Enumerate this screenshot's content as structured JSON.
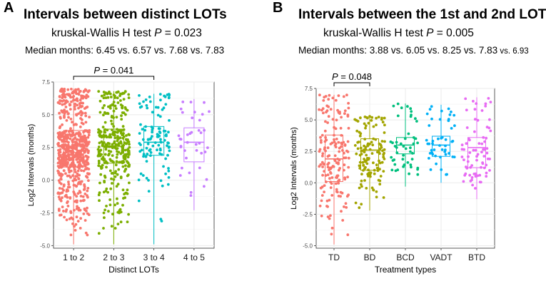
{
  "panelA": {
    "letter": "A",
    "title": "Intervals between distinct LOTs",
    "test_prefix": "kruskal-Wallis H test ",
    "p_symbol": "P",
    "test_value": " = 0.023",
    "median_text": "Median months: 6.45 vs. 6.57 vs. 7.68 vs. 7.83",
    "sig_text": " = 0.041"
  },
  "panelB": {
    "letter": "B",
    "title": "Intervals between the 1st and 2nd LOT",
    "test_prefix": "kruskal-Wallis H test ",
    "p_symbol": "P",
    "test_value": " = 0.005",
    "median_text_main": "Median months: 3.88 vs. 6.05 vs. 8.25 vs. 7.83",
    "median_text_small": " vs. 6.93",
    "sig_text": " = 0.048"
  },
  "chart_data": [
    {
      "type": "box",
      "panel": "A",
      "title": "Intervals between distinct LOTs",
      "subtitle": "kruskal-Wallis H test P = 0.023",
      "xlabel": "Distinct LOTs",
      "ylabel": "Log2 Intervals (months)",
      "ylim": [
        -5.2,
        7.5
      ],
      "yticks": [
        -5.0,
        -2.5,
        0.0,
        2.5,
        5.0,
        7.5
      ],
      "ytick_labels": [
        "-5.0",
        "-2.5",
        "0.0",
        "2.5",
        "5.0",
        "7.5"
      ],
      "grid": true,
      "categories": [
        "1 to 2",
        "2 to 3",
        "3 to 4",
        "4 to 5"
      ],
      "colors": [
        "#F8766D",
        "#7CAE00",
        "#00BFC4",
        "#C77CFF"
      ],
      "point_counts": [
        650,
        330,
        110,
        38
      ],
      "boxes": [
        {
          "q1": 1.0,
          "median": 2.6,
          "q3": 3.8,
          "low": -4.9,
          "high": 7.0
        },
        {
          "q1": 1.3,
          "median": 2.6,
          "q3": 3.9,
          "low": -4.9,
          "high": 6.8
        },
        {
          "q1": 1.9,
          "median": 2.9,
          "q3": 4.1,
          "low": -4.9,
          "high": 6.6
        },
        {
          "q1": 1.4,
          "median": 2.9,
          "q3": 4.0,
          "low": -2.3,
          "high": 6.2
        }
      ],
      "comparison": {
        "groups": [
          "1 to 2",
          "3 to 4"
        ],
        "label": "P = 0.041"
      }
    },
    {
      "type": "box",
      "panel": "B",
      "title": "Intervals between the 1st and 2nd LOT",
      "subtitle": "kruskal-Wallis H test P = 0.005",
      "xlabel": "Treatment types",
      "ylabel": "Log2 Intervals (months)",
      "ylim": [
        -5.2,
        7.5
      ],
      "yticks": [
        -5.0,
        -2.5,
        0.0,
        2.5,
        5.0,
        7.5
      ],
      "ytick_labels": [
        "-5.0",
        "-2.5",
        "0.0",
        "2.5",
        "5.0",
        "7.5"
      ],
      "grid": true,
      "categories": [
        "TD",
        "BD",
        "BCD",
        "VADT",
        "BTD"
      ],
      "colors": [
        "#F8766D",
        "#A3A500",
        "#00BF7D",
        "#00B0F6",
        "#E76BF3"
      ],
      "point_counts": [
        170,
        130,
        48,
        48,
        75
      ],
      "boxes": [
        {
          "q1": 0.1,
          "median": 1.9,
          "q3": 3.8,
          "low": -4.9,
          "high": 7.0
        },
        {
          "q1": 1.0,
          "median": 2.6,
          "q3": 3.5,
          "low": -2.2,
          "high": 5.3
        },
        {
          "q1": 2.3,
          "median": 3.0,
          "q3": 3.6,
          "low": -0.3,
          "high": 6.3
        },
        {
          "q1": 2.1,
          "median": 3.0,
          "q3": 3.7,
          "low": 0.0,
          "high": 6.2
        },
        {
          "q1": 1.2,
          "median": 2.8,
          "q3": 3.6,
          "low": -1.3,
          "high": 6.8
        }
      ],
      "comparison": {
        "groups": [
          "TD",
          "BD"
        ],
        "label": "P = 0.048"
      }
    }
  ]
}
